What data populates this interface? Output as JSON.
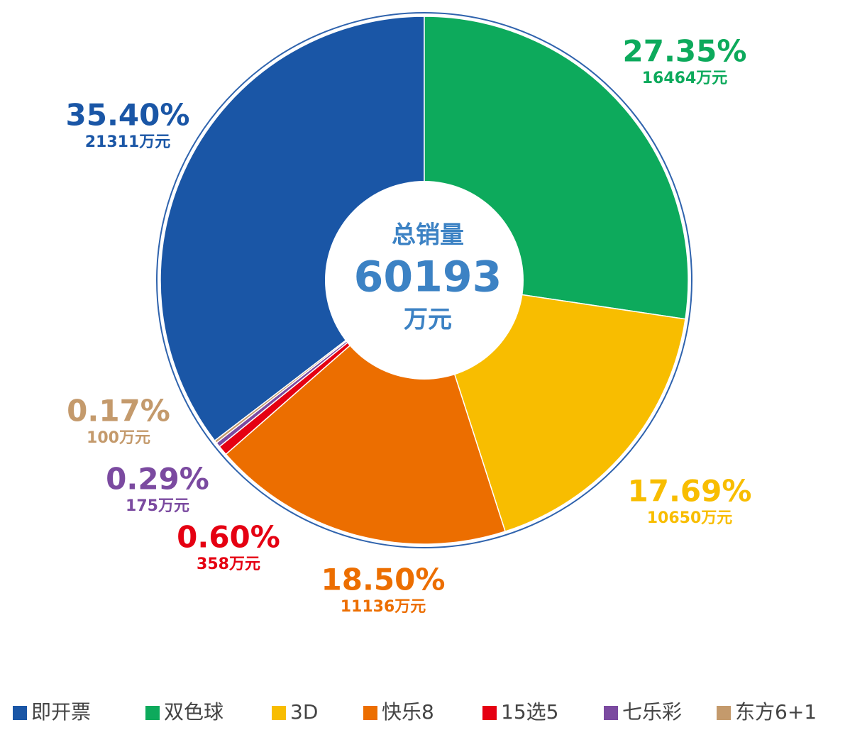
{
  "chart_data": {
    "type": "pie",
    "categories": [
      "即开票",
      "双色球",
      "3D",
      "快乐8",
      "15选5",
      "七乐彩",
      "东方6+1"
    ],
    "values": [
      35.4,
      27.35,
      17.69,
      18.5,
      0.6,
      0.29,
      0.17
    ],
    "value_labels": [
      "35.40%",
      "27.35%",
      "17.69%",
      "18.50%",
      "0.60%",
      "0.29%",
      "0.17%"
    ],
    "amounts": [
      21311,
      16464,
      10650,
      11136,
      358,
      175,
      100
    ],
    "amount_labels": [
      "21311万元",
      "16464万元",
      "10650万元",
      "11136万元",
      "358万元",
      "175万元",
      "100万元"
    ],
    "colors": [
      "#1a56a6",
      "#0daa5c",
      "#f8bd00",
      "#ec6e00",
      "#e50012",
      "#7b4aa0",
      "#c49a6c"
    ],
    "center_title": "总销量",
    "center_value": 60193,
    "center_unit": "万元",
    "legend": "bottom"
  }
}
